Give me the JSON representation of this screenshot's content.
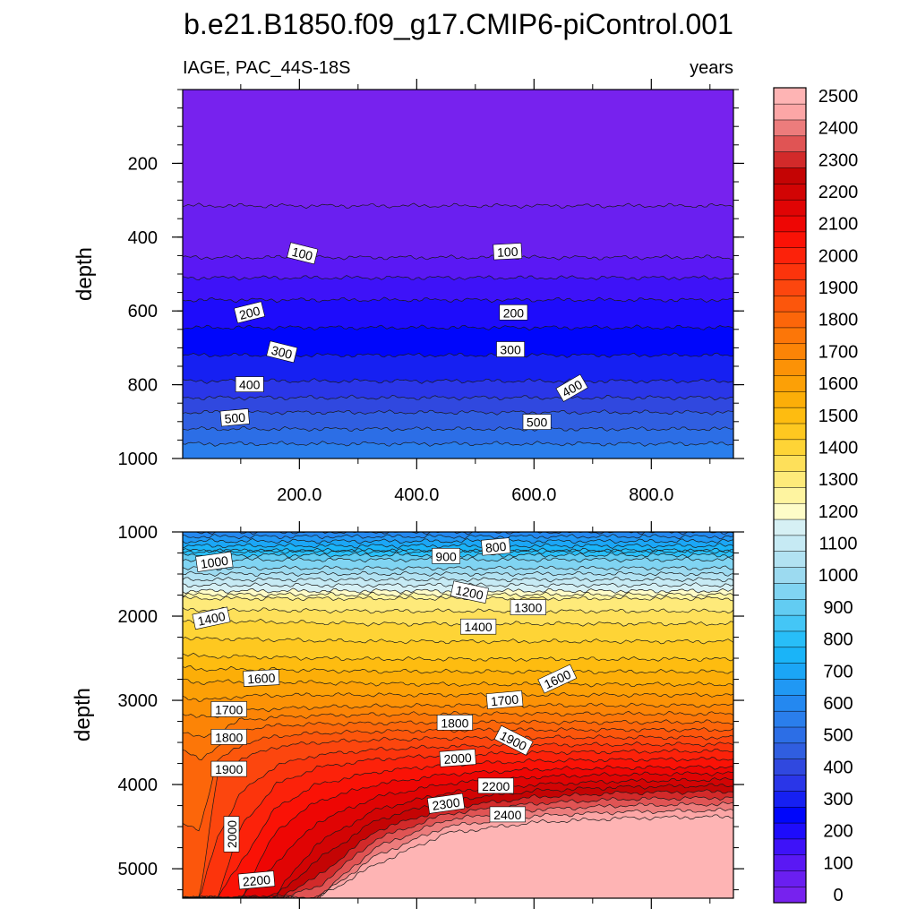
{
  "chart_data": {
    "type": "heatmap",
    "title": "b.e21.B1850.f09_g17.CMIP6-piControl.001",
    "variable_label": "IAGE, PAC_44S-18S",
    "units_label": "years",
    "ylabel": "depth",
    "x_ticks": [
      "200.0",
      "400.0",
      "600.0",
      "800.0"
    ],
    "x_tick_values": [
      200,
      400,
      600,
      800
    ],
    "xlim": [
      1,
      940
    ],
    "top_panel": {
      "ylim": [
        0,
        1000
      ],
      "y_ticks": [
        "200",
        "400",
        "600",
        "800",
        "1000"
      ],
      "y_tick_values": [
        200,
        400,
        600,
        800,
        1000
      ],
      "contour_depths": [
        {
          "level": 0,
          "depth": 0
        },
        {
          "level": 50,
          "depth": 315
        },
        {
          "level": 100,
          "depth": 455
        },
        {
          "level": 150,
          "depth": 510
        },
        {
          "level": 200,
          "depth": 570
        },
        {
          "level": 250,
          "depth": 645
        },
        {
          "level": 300,
          "depth": 720
        },
        {
          "level": 350,
          "depth": 790
        },
        {
          "level": 400,
          "depth": 835
        },
        {
          "level": 450,
          "depth": 875
        },
        {
          "level": 500,
          "depth": 920
        },
        {
          "level": 550,
          "depth": 960
        }
      ],
      "contour_labels": [
        {
          "text": "100",
          "x": 205,
          "y": 445,
          "angle": 14
        },
        {
          "text": "100",
          "x": 555,
          "y": 440,
          "angle": -3
        },
        {
          "text": "200",
          "x": 115,
          "y": 605,
          "angle": -14
        },
        {
          "text": "200",
          "x": 565,
          "y": 605,
          "angle": 0
        },
        {
          "text": "300",
          "x": 170,
          "y": 712,
          "angle": 14
        },
        {
          "text": "300",
          "x": 560,
          "y": 705,
          "angle": 0
        },
        {
          "text": "400",
          "x": 115,
          "y": 800,
          "angle": 0
        },
        {
          "text": "400",
          "x": 665,
          "y": 810,
          "angle": -30
        },
        {
          "text": "500",
          "x": 90,
          "y": 890,
          "angle": -5
        },
        {
          "text": "500",
          "x": 605,
          "y": 902,
          "angle": 0
        }
      ]
    },
    "bottom_panel": {
      "ylim": [
        1000,
        5350
      ],
      "y_ticks": [
        "1000",
        "2000",
        "3000",
        "4000",
        "5000"
      ],
      "y_tick_values": [
        1000,
        2000,
        3000,
        4000,
        5000
      ],
      "contour_depths_at_x": {
        "x": [
          1,
          30,
          60,
          100,
          160,
          230,
          330,
          450,
          600,
          750,
          940
        ],
        "levels": [
          {
            "level": 900,
            "depth": [
              1230,
              1230,
              1230,
              1230,
              1230,
              1230,
              1230,
              1230,
              1230,
              1230,
              1230
            ]
          },
          {
            "level": 1000,
            "depth": [
              1430,
              1430,
              1430,
              1430,
              1430,
              1430,
              1430,
              1430,
              1430,
              1430,
              1430
            ]
          },
          {
            "level": 1200,
            "depth": [
              1700,
              1700,
              1700,
              1700,
              1700,
              1700,
              1700,
              1700,
              1700,
              1700,
              1700
            ]
          },
          {
            "level": 1300,
            "depth": [
              1790,
              1790,
              1790,
              1790,
              1790,
              1790,
              1790,
              1790,
              1790,
              1790,
              1790
            ]
          },
          {
            "level": 1400,
            "depth": [
              2050,
              2060,
              2060,
              2060,
              2070,
              2080,
              2090,
              2090,
              2090,
              2090,
              2090
            ]
          },
          {
            "level": 1500,
            "depth": [
              2450,
              2480,
              2480,
              2480,
              2490,
              2500,
              2510,
              2510,
              2510,
              2510,
              2510
            ]
          },
          {
            "level": 1600,
            "depth": [
              2760,
              2790,
              2780,
              2780,
              2780,
              2790,
              2800,
              2810,
              2810,
              2810,
              2810
            ]
          },
          {
            "level": 1700,
            "depth": [
              3150,
              3200,
              3200,
              3120,
              3100,
              3080,
              3070,
              3060,
              3060,
              3060,
              3060
            ]
          },
          {
            "level": 1800,
            "depth": [
              3600,
              3700,
              3550,
              3350,
              3300,
              3280,
              3270,
              3260,
              3260,
              3260,
              3260
            ]
          },
          {
            "level": 1900,
            "depth": [
              5350,
              5350,
              3900,
              3700,
              3550,
              3500,
              3470,
              3450,
              3440,
              3440,
              3440
            ]
          },
          {
            "level": 2000,
            "depth": [
              5350,
              5350,
              5350,
              4500,
              4000,
              3800,
              3700,
              3650,
              3620,
              3610,
              3600
            ]
          },
          {
            "level": 2100,
            "depth": [
              5350,
              5350,
              5350,
              5350,
              4550,
              4200,
              4000,
              3880,
              3820,
              3800,
              3790
            ]
          },
          {
            "level": 2200,
            "depth": [
              5350,
              5350,
              5350,
              5350,
              5300,
              4700,
              4300,
              4100,
              4000,
              3960,
              3940
            ]
          },
          {
            "level": 2300,
            "depth": [
              5350,
              5350,
              5350,
              5350,
              5350,
              5100,
              4550,
              4280,
              4150,
              4100,
              4080
            ]
          },
          {
            "level": 2400,
            "depth": [
              5350,
              5350,
              5350,
              5350,
              5350,
              5350,
              4750,
              4420,
              4300,
              4250,
              4230
            ]
          },
          {
            "level": 2500,
            "depth": [
              5350,
              5350,
              5350,
              5350,
              5350,
              5350,
              4950,
              4580,
              4450,
              4400,
              4380
            ]
          }
        ]
      },
      "contour_labels": [
        {
          "text": "1000",
          "x": 55,
          "y": 1360,
          "angle": -8
        },
        {
          "text": "900",
          "x": 450,
          "y": 1290,
          "angle": 0
        },
        {
          "text": "800",
          "x": 535,
          "y": 1180,
          "angle": -5
        },
        {
          "text": "1200",
          "x": 490,
          "y": 1720,
          "angle": 12
        },
        {
          "text": "1300",
          "x": 590,
          "y": 1900,
          "angle": 0
        },
        {
          "text": "1400",
          "x": 50,
          "y": 2030,
          "angle": -12
        },
        {
          "text": "1400",
          "x": 505,
          "y": 2130,
          "angle": 0
        },
        {
          "text": "1600",
          "x": 135,
          "y": 2740,
          "angle": -3
        },
        {
          "text": "1600",
          "x": 640,
          "y": 2750,
          "angle": -25
        },
        {
          "text": "1700",
          "x": 80,
          "y": 3110,
          "angle": 0
        },
        {
          "text": "1700",
          "x": 550,
          "y": 3000,
          "angle": -5
        },
        {
          "text": "1800",
          "x": 80,
          "y": 3440,
          "angle": 0
        },
        {
          "text": "1800",
          "x": 465,
          "y": 3270,
          "angle": 0
        },
        {
          "text": "1900",
          "x": 565,
          "y": 3480,
          "angle": 27
        },
        {
          "text": "1900",
          "x": 80,
          "y": 3820,
          "angle": 0
        },
        {
          "text": "2000",
          "x": 470,
          "y": 3690,
          "angle": -4
        },
        {
          "text": "2200",
          "x": 535,
          "y": 4020,
          "angle": 0
        },
        {
          "text": "2300",
          "x": 450,
          "y": 4230,
          "angle": -8
        },
        {
          "text": "2400",
          "x": 555,
          "y": 4360,
          "angle": 0
        },
        {
          "text": "2000",
          "x": 85,
          "y": 4590,
          "angle": -90
        },
        {
          "text": "2200",
          "x": 127,
          "y": 5140,
          "angle": -5
        }
      ]
    },
    "colorbar": {
      "levels": [
        0,
        50,
        100,
        150,
        200,
        250,
        300,
        350,
        400,
        450,
        500,
        550,
        600,
        650,
        700,
        750,
        800,
        850,
        900,
        950,
        1000,
        1050,
        1100,
        1150,
        1200,
        1250,
        1300,
        1350,
        1400,
        1450,
        1500,
        1550,
        1600,
        1650,
        1700,
        1750,
        1800,
        1850,
        1900,
        1950,
        2000,
        2050,
        2100,
        2150,
        2200,
        2250,
        2300,
        2350,
        2400,
        2450,
        2500,
        2550
      ],
      "colors": [
        "#7722ee",
        "#6a1ff0",
        "#5a18f4",
        "#3e12f8",
        "#1e0cfb",
        "#0006fb",
        "#1620f2",
        "#2a36e8",
        "#3048df",
        "#305ee0",
        "#2c6ee6",
        "#2a7eec",
        "#2488f0",
        "#2098f4",
        "#1ba6f6",
        "#1ab4f8",
        "#28bef8",
        "#44c6f6",
        "#62ccf2",
        "#80d4f2",
        "#9cdaf0",
        "#b2e2f2",
        "#c6eaf4",
        "#d6f0f4",
        "#fefcc8",
        "#fef4a0",
        "#feea7a",
        "#fee05a",
        "#fed436",
        "#fec820",
        "#febc10",
        "#fcae08",
        "#fca006",
        "#fc9206",
        "#fc8406",
        "#fc7608",
        "#fc660a",
        "#fc560c",
        "#fc460e",
        "#fc340c",
        "#fc220a",
        "#fa1206",
        "#ee0604",
        "#e00404",
        "#d20404",
        "#c40404",
        "#d22a2a",
        "#e05454",
        "#ec7c7c",
        "#fca6a6",
        "#feb4b4"
      ],
      "tick_labels": [
        "0",
        "100",
        "200",
        "300",
        "400",
        "500",
        "600",
        "700",
        "800",
        "900",
        "1000",
        "1100",
        "1200",
        "1300",
        "1400",
        "1500",
        "1600",
        "1700",
        "1800",
        "1900",
        "2000",
        "2100",
        "2200",
        "2300",
        "2400",
        "2500"
      ],
      "tick_values": [
        0,
        100,
        200,
        300,
        400,
        500,
        600,
        700,
        800,
        900,
        1000,
        1100,
        1200,
        1300,
        1400,
        1500,
        1600,
        1700,
        1800,
        1900,
        2000,
        2100,
        2200,
        2300,
        2400,
        2500
      ]
    }
  }
}
